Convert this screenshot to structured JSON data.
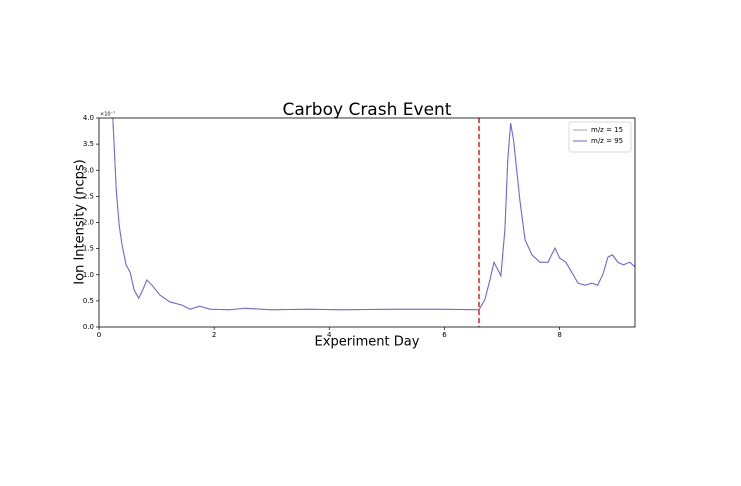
{
  "chart_data": {
    "type": "line",
    "title": "Carboy Crash Event",
    "x_label": "Experiment Day",
    "y_label": "Ion Intensity (ncps)",
    "y_offset_text": "×10⁻⁷",
    "xlim": [
      0,
      9.31
    ],
    "xticks": [
      0,
      2,
      4,
      6,
      8
    ],
    "ylim": [
      0,
      4.0
    ],
    "yticks": [
      {
        "value": 0,
        "label": "0.0"
      },
      {
        "value": 0.5,
        "label": "0.5"
      },
      {
        "value": 1,
        "label": "1.0"
      },
      {
        "value": 1.5,
        "label": "1.5"
      },
      {
        "value": 2,
        "label": "2.0"
      },
      {
        "value": 2.5,
        "label": "2.5"
      },
      {
        "value": 3,
        "label": "3.0"
      },
      {
        "value": 3.5,
        "label": "3.5"
      },
      {
        "value": 4,
        "label": "4.0"
      }
    ],
    "x": [
      0.24,
      0.3,
      0.35,
      0.4,
      0.47,
      0.54,
      0.61,
      0.69,
      0.76,
      0.83,
      0.92,
      1.06,
      1.23,
      1.44,
      1.58,
      1.75,
      1.93,
      2.27,
      2.53,
      2.97,
      3.66,
      4.18,
      5.23,
      5.92,
      6.6,
      6.7,
      6.79,
      6.86,
      6.93,
      6.98,
      7.05,
      7.1,
      7.15,
      7.2,
      7.31,
      7.4,
      7.52,
      7.66,
      7.8,
      7.86,
      7.92,
      8.0,
      8.11,
      8.21,
      8.32,
      8.44,
      8.56,
      8.66,
      8.75,
      8.84,
      8.92,
      9.01,
      9.11,
      9.22,
      9.31
    ],
    "series": [
      {
        "name": "m/z = 15",
        "color": "#a0a0c8",
        "values": [
          4.0,
          2.62,
          1.95,
          1.57,
          1.19,
          1.05,
          0.71,
          0.55,
          0.71,
          0.9,
          0.8,
          0.61,
          0.48,
          0.42,
          0.34,
          0.4,
          0.34,
          0.33,
          0.36,
          0.33,
          0.34,
          0.33,
          0.34,
          0.34,
          0.33,
          0.52,
          0.9,
          1.24,
          1.09,
          0.98,
          1.86,
          3.2,
          3.9,
          3.58,
          2.43,
          1.67,
          1.38,
          1.24,
          1.24,
          1.38,
          1.51,
          1.32,
          1.24,
          1.05,
          0.84,
          0.8,
          0.84,
          0.8,
          1.0,
          1.34,
          1.38,
          1.24,
          1.19,
          1.24,
          1.15
        ]
      },
      {
        "name": "m/z = 95",
        "color": "#6a6ae0",
        "values": [
          4.0,
          2.62,
          1.95,
          1.57,
          1.19,
          1.05,
          0.71,
          0.55,
          0.71,
          0.9,
          0.8,
          0.61,
          0.48,
          0.42,
          0.34,
          0.4,
          0.34,
          0.33,
          0.36,
          0.33,
          0.34,
          0.33,
          0.34,
          0.34,
          0.33,
          0.52,
          0.9,
          1.24,
          1.09,
          0.98,
          1.86,
          3.2,
          3.9,
          3.58,
          2.43,
          1.67,
          1.38,
          1.24,
          1.24,
          1.38,
          1.51,
          1.32,
          1.24,
          1.05,
          0.84,
          0.8,
          0.84,
          0.8,
          1.0,
          1.34,
          1.38,
          1.24,
          1.19,
          1.24,
          1.15
        ]
      }
    ],
    "vline": {
      "x": 6.6,
      "color": "#e02020"
    },
    "legend": "upper right"
  }
}
